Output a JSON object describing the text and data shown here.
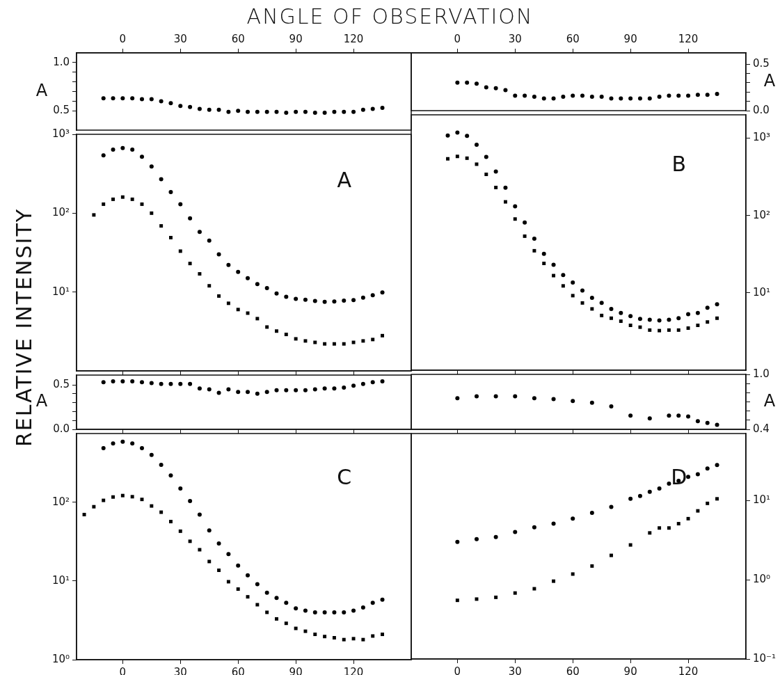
{
  "chart_data": [
    {
      "type": "scatter",
      "title": "ANGLE OF OBSERVATION",
      "ylabel": "A",
      "xlim": [
        -24,
        150
      ],
      "xticks": [
        0,
        30,
        60,
        90,
        120
      ],
      "ylim": [
        0.3,
        1.1
      ],
      "yticks": [
        0.5,
        {
          "value": 0.6,
          "label": null
        },
        {
          "value": 0.7,
          "label": null
        },
        {
          "value": 0.8,
          "label": null
        },
        {
          "value": 0.9,
          "label": null
        },
        {
          "value": 1.0,
          "label": "1.0"
        }
      ],
      "series": [
        {
          "color": "#000000",
          "marker": "circle",
          "x": [
            -10,
            -5,
            0,
            5,
            10,
            15,
            20,
            25,
            30,
            35,
            40,
            45,
            50,
            55,
            60,
            65,
            70,
            75,
            80,
            85,
            90,
            95,
            100,
            105,
            110,
            115,
            120,
            125,
            130,
            135
          ],
          "values": [
            0.63,
            0.63,
            0.63,
            0.63,
            0.62,
            0.62,
            0.6,
            0.58,
            0.55,
            0.54,
            0.52,
            0.51,
            0.51,
            0.49,
            0.5,
            0.49,
            0.49,
            0.49,
            0.49,
            0.48,
            0.49,
            0.49,
            0.48,
            0.48,
            0.49,
            0.49,
            0.49,
            0.51,
            0.52,
            0.53
          ]
        }
      ]
    },
    {
      "type": "scatter",
      "y2label": "A",
      "xlim": [
        -24,
        150
      ],
      "xticks": [
        0,
        30,
        60,
        90,
        120
      ],
      "y2lim": [
        0,
        0.62
      ],
      "y2ticks": [
        {
          "value": 0,
          "label": "0.0"
        },
        {
          "value": 0.1,
          "label": null
        },
        {
          "value": 0.2,
          "label": null
        },
        {
          "value": 0.3,
          "label": null
        },
        {
          "value": 0.4,
          "label": null
        },
        0.5
      ],
      "series": [
        {
          "color": "#000000",
          "marker": "circle",
          "axis": "y2",
          "x": [
            0,
            5,
            10,
            15,
            20,
            25,
            30,
            35,
            40,
            45,
            50,
            55,
            60,
            65,
            70,
            75,
            80,
            85,
            90,
            95,
            100,
            105,
            110,
            115,
            120,
            125,
            130,
            135
          ],
          "values": [
            0.3,
            0.3,
            0.29,
            0.25,
            0.24,
            0.22,
            0.16,
            0.16,
            0.15,
            0.13,
            0.13,
            0.15,
            0.16,
            0.16,
            0.15,
            0.15,
            0.13,
            0.13,
            0.13,
            0.13,
            0.13,
            0.15,
            0.16,
            0.16,
            0.16,
            0.17,
            0.17,
            0.18
          ]
        }
      ]
    },
    {
      "type": "scatter",
      "ylabel": "RELATIVE INTENSITY",
      "annotations": [
        "A"
      ],
      "log": true,
      "tick_labels": "y",
      "xlim": [
        -24,
        150
      ],
      "xticks": [
        0,
        30,
        60,
        90,
        120
      ],
      "ylim": [
        1,
        1000
      ],
      "yticks": [
        {
          "value": 10,
          "label": "10¹"
        },
        {
          "value": 100,
          "label": "10²"
        },
        {
          "value": 1000,
          "label": "10³"
        }
      ],
      "series": [
        {
          "color": "#000000",
          "marker": "circle",
          "x": [
            -10,
            -5,
            0,
            5,
            10,
            15,
            20,
            25,
            30,
            35,
            40,
            45,
            50,
            55,
            60,
            65,
            70,
            75,
            80,
            85,
            90,
            95,
            100,
            105,
            110,
            115,
            120,
            125,
            130,
            135
          ],
          "values": [
            540,
            640,
            670,
            640,
            520,
            390,
            270,
            185,
            130,
            86,
            58,
            45,
            30,
            22,
            18,
            15,
            12.6,
            11.2,
            9.6,
            8.7,
            8.2,
            8,
            7.7,
            7.5,
            7.6,
            7.8,
            7.9,
            8.5,
            9.1,
            9.9
          ]
        },
        {
          "color": "#000000",
          "marker": "square",
          "x": [
            -15,
            -10,
            -5,
            0,
            5,
            10,
            15,
            20,
            25,
            30,
            35,
            40,
            45,
            50,
            55,
            60,
            65,
            70,
            75,
            80,
            85,
            90,
            95,
            100,
            105,
            110,
            115,
            120,
            125,
            130,
            135
          ],
          "values": [
            95,
            130,
            150,
            160,
            150,
            130,
            100,
            69,
            49,
            33,
            23,
            17,
            12,
            8.9,
            7.2,
            6,
            5.4,
            4.6,
            3.6,
            3.2,
            2.9,
            2.55,
            2.4,
            2.3,
            2.2,
            2.2,
            2.2,
            2.3,
            2.4,
            2.5,
            2.8
          ]
        }
      ]
    },
    {
      "type": "scatter",
      "annotations": [
        "B"
      ],
      "log": "y2",
      "tick_labels": "y",
      "xlim": [
        -24,
        150
      ],
      "xticks": [
        0,
        30,
        60,
        90,
        120
      ],
      "y2lim": [
        1,
        2000
      ],
      "y2ticks": [
        {
          "value": 10,
          "label": "10¹"
        },
        {
          "value": 100,
          "label": "10²"
        },
        {
          "value": 1000,
          "label": "10³"
        }
      ],
      "series": [
        {
          "color": "#000000",
          "marker": "circle",
          "axis": "y2",
          "x": [
            -5,
            0,
            5,
            10,
            15,
            20,
            25,
            30,
            35,
            40,
            45,
            50,
            55,
            60,
            65,
            70,
            75,
            80,
            85,
            90,
            95,
            100,
            105,
            110,
            115,
            120,
            125,
            130,
            135
          ],
          "values": [
            1080,
            1180,
            1070,
            820,
            570,
            370,
            229,
            131,
            81,
            50,
            32,
            23,
            17,
            13.6,
            10.7,
            8.6,
            7.4,
            6.2,
            5.5,
            5,
            4.6,
            4.5,
            4.4,
            4.5,
            4.7,
            5.3,
            5.5,
            6.4,
            7.1
          ]
        },
        {
          "color": "#000000",
          "marker": "square",
          "axis": "y2",
          "x": [
            -5,
            0,
            5,
            10,
            15,
            20,
            25,
            30,
            35,
            40,
            45,
            50,
            55,
            60,
            65,
            70,
            75,
            80,
            85,
            90,
            95,
            100,
            105,
            110,
            115,
            120,
            125,
            130,
            135
          ],
          "values": [
            540,
            580,
            550,
            460,
            340,
            230,
            150,
            90,
            54,
            35,
            24,
            16.7,
            12.3,
            9.2,
            7.4,
            6.2,
            5.1,
            4.7,
            4.3,
            3.8,
            3.6,
            3.3,
            3.25,
            3.3,
            3.3,
            3.5,
            3.8,
            4.2,
            4.7
          ]
        }
      ]
    },
    {
      "type": "scatter",
      "ylabel": "A",
      "tick_labels": "y",
      "xlim": [
        -24,
        150
      ],
      "xticks": [
        0,
        30,
        60,
        90,
        120
      ],
      "ylim": [
        0,
        0.61
      ],
      "yticks": [
        {
          "value": 0,
          "label": "0.0"
        },
        {
          "value": 0.1,
          "label": null
        },
        {
          "value": 0.2,
          "label": null
        },
        {
          "value": 0.3,
          "label": null
        },
        {
          "value": 0.4,
          "label": null
        },
        0.5
      ],
      "series": [
        {
          "color": "#000000",
          "marker": "circle",
          "x": [
            -10,
            -5,
            0,
            5,
            10,
            15,
            20,
            25,
            30,
            35,
            40,
            45,
            50,
            55,
            60,
            65,
            70,
            75,
            80,
            85,
            90,
            95,
            100,
            105,
            110,
            115,
            120,
            125,
            130,
            135
          ],
          "values": [
            0.53,
            0.54,
            0.54,
            0.54,
            0.53,
            0.52,
            0.51,
            0.51,
            0.51,
            0.51,
            0.46,
            0.45,
            0.41,
            0.45,
            0.42,
            0.42,
            0.4,
            0.42,
            0.44,
            0.44,
            0.44,
            0.44,
            0.45,
            0.46,
            0.46,
            0.47,
            0.49,
            0.51,
            0.53,
            0.54
          ]
        }
      ]
    },
    {
      "type": "scatter",
      "y2label": "A",
      "tick_labels": "y",
      "xlim": [
        -24,
        150
      ],
      "xticks": [
        0,
        30,
        60,
        90,
        120
      ],
      "y2lim": [
        0.4,
        1.0
      ],
      "y2ticks": [
        0.4,
        {
          "value": 0.5,
          "label": null
        },
        {
          "value": 0.6,
          "label": null
        },
        {
          "value": 0.7,
          "label": null
        },
        {
          "value": 0.8,
          "label": null
        },
        {
          "value": 0.9,
          "label": null
        },
        {
          "value": 1.0,
          "label": "1.0"
        }
      ],
      "series": [
        {
          "color": "#000000",
          "marker": "circle",
          "axis": "y2",
          "x": [
            0,
            10,
            20,
            30,
            40,
            50,
            60,
            70,
            80,
            90,
            100,
            110,
            115,
            120,
            125,
            130,
            135
          ],
          "values": [
            0.74,
            0.76,
            0.76,
            0.76,
            0.74,
            0.73,
            0.71,
            0.69,
            0.65,
            0.55,
            0.52,
            0.55,
            0.55,
            0.54,
            0.49,
            0.47,
            0.45
          ]
        }
      ]
    },
    {
      "type": "scatter",
      "annotations": [
        "C"
      ],
      "log": true,
      "xlim": [
        -24,
        150
      ],
      "xticks": [
        0,
        30,
        60,
        90,
        120
      ],
      "ylim": [
        1,
        750
      ],
      "yticks": [
        {
          "value": 1,
          "label": "10⁰"
        },
        {
          "value": 10,
          "label": "10¹"
        },
        {
          "value": 100,
          "label": "10²"
        }
      ],
      "series": [
        {
          "color": "#000000",
          "marker": "circle",
          "x": [
            -10,
            -5,
            0,
            5,
            10,
            15,
            20,
            25,
            30,
            35,
            40,
            45,
            50,
            55,
            60,
            65,
            70,
            75,
            80,
            85,
            90,
            95,
            100,
            105,
            110,
            115,
            120,
            125,
            130,
            135
          ],
          "values": [
            490,
            560,
            590,
            560,
            490,
            400,
            300,
            220,
            150,
            104,
            70,
            44,
            30,
            22,
            15.7,
            11.8,
            9.1,
            7.1,
            6.1,
            5.3,
            4.5,
            4.2,
            4,
            4,
            4,
            4,
            4.2,
            4.6,
            5.3,
            5.8
          ]
        },
        {
          "color": "#000000",
          "marker": "square",
          "x": [
            -20,
            -15,
            -10,
            -5,
            0,
            5,
            10,
            15,
            20,
            25,
            30,
            35,
            40,
            45,
            50,
            55,
            60,
            65,
            70,
            75,
            80,
            85,
            90,
            95,
            100,
            105,
            110,
            115,
            120,
            125,
            130,
            135
          ],
          "values": [
            70,
            88,
            106,
            117,
            122,
            118,
            109,
            90,
            75,
            57,
            43,
            32,
            25,
            17.7,
            13.7,
            9.8,
            7.9,
            6.3,
            5,
            4,
            3.3,
            2.9,
            2.5,
            2.3,
            2.1,
            1.97,
            1.9,
            1.8,
            1.85,
            1.8,
            2,
            2.1
          ]
        }
      ]
    },
    {
      "type": "scatter",
      "annotations": [
        "D"
      ],
      "log": "y2",
      "xlim": [
        -24,
        150
      ],
      "xticks": [
        0,
        30,
        60,
        90,
        120
      ],
      "y2lim": [
        0.1,
        70
      ],
      "y2ticks": [
        {
          "value": 0.1,
          "label": "10⁻¹"
        },
        {
          "value": 1,
          "label": "10⁰"
        },
        {
          "value": 10,
          "label": "10¹"
        }
      ],
      "series": [
        {
          "color": "#000000",
          "marker": "circle",
          "axis": "y2",
          "x": [
            0,
            10,
            20,
            30,
            40,
            50,
            60,
            70,
            80,
            90,
            95,
            100,
            105,
            110,
            115,
            120,
            125,
            130,
            135
          ],
          "values": [
            3,
            3.25,
            3.45,
            4,
            4.6,
            5.1,
            5.9,
            7,
            8.3,
            10.5,
            11.4,
            12.9,
            14.2,
            16.3,
            17.7,
            19.9,
            21.4,
            25.3,
            28
          ]
        },
        {
          "color": "#000000",
          "marker": "square",
          "axis": "y2",
          "x": [
            0,
            10,
            20,
            30,
            40,
            50,
            60,
            70,
            80,
            90,
            100,
            105,
            110,
            115,
            120,
            125,
            130,
            135
          ],
          "values": [
            0.55,
            0.57,
            0.6,
            0.68,
            0.77,
            0.96,
            1.18,
            1.49,
            2.03,
            2.75,
            3.9,
            4.5,
            4.5,
            5.1,
            5.9,
            7.4,
            9.2,
            10.5
          ]
        }
      ]
    }
  ]
}
